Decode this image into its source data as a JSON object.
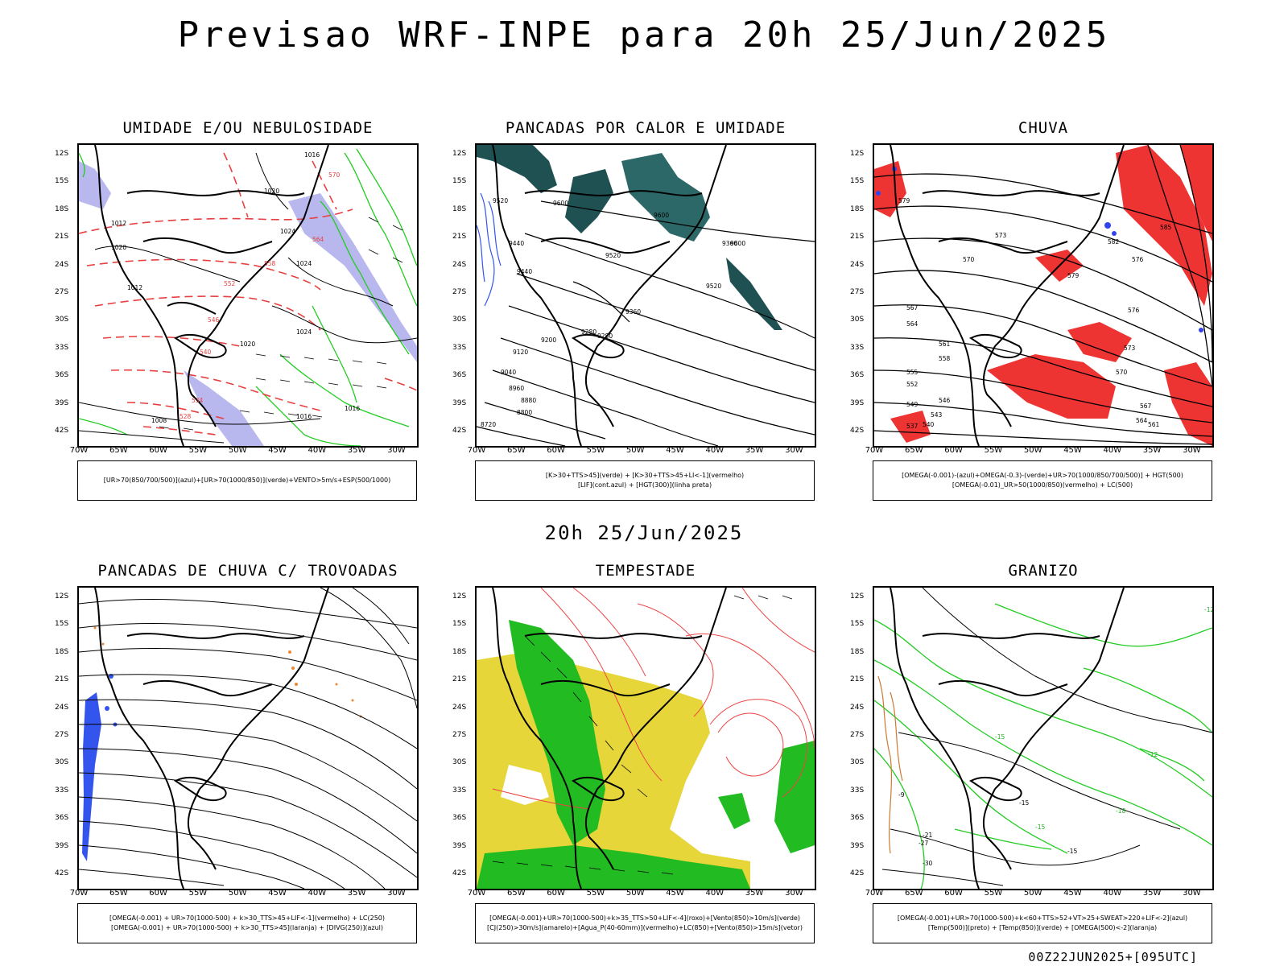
{
  "header": {
    "title": "Previsao WRF-INPE  para 20h 25/Jun/2025"
  },
  "mid_time": "20h 25/Jun/2025",
  "footer_code": "00Z22JUN2025+[095UTC]",
  "axes": {
    "lat_ticks": [
      "12S",
      "15S",
      "18S",
      "21S",
      "24S",
      "27S",
      "30S",
      "33S",
      "36S",
      "39S",
      "42S"
    ],
    "lon_ticks": [
      "70W",
      "65W",
      "60W",
      "55W",
      "50W",
      "45W",
      "40W",
      "35W",
      "30W"
    ]
  },
  "panels": [
    {
      "id": "umidade",
      "title": "UMIDADE E/OU NEBULOSIDADE",
      "legend": [
        "[UR>70(850/700/500)](azul)+[UR>70(1000/850)](verde)+VENTO>5m/s+ESP(500/1000)"
      ],
      "contour_labels": [
        "1016",
        "1020",
        "1012",
        "1020",
        "1024",
        "1024",
        "1020",
        "1012",
        "1008",
        "1016",
        "1016",
        "1024",
        "570",
        "564",
        "558",
        "552",
        "546",
        "540",
        "534",
        "528"
      ]
    },
    {
      "id": "pancadas_calor",
      "title": "PANCADAS POR CALOR E UMIDADE",
      "legend": [
        "[K>30+TTS>45](verde) + [K>30+TTS>45+LI<-1](vermelho)",
        "[LIF](cont.azul) + [HGT(300)](linha preta)"
      ],
      "contour_labels": [
        "9520",
        "9600",
        "9440",
        "9520",
        "9600",
        "9360",
        "9440",
        "9280",
        "9200",
        "9120",
        "9040",
        "8960",
        "8880",
        "8800",
        "8720",
        "9600",
        "9520",
        "9360",
        "9280"
      ]
    },
    {
      "id": "chuva",
      "title": "CHUVA",
      "legend": [
        "[OMEGA(-0.001)-(azul)+OMEGA(-0.3)-(verde)+UR>70(1000/850/700/500)] + HGT(500)",
        "[OMEGA(-0.01)_UR>50(1000/850)(vermelho) + LC(500)"
      ],
      "contour_labels": [
        "579",
        "576",
        "573",
        "570",
        "567",
        "564",
        "561",
        "558",
        "555",
        "552",
        "549",
        "546",
        "543",
        "540",
        "537",
        "585",
        "582",
        "579",
        "576",
        "573",
        "570",
        "567",
        "564",
        "561"
      ]
    },
    {
      "id": "pancadas_trovoadas",
      "title": "PANCADAS DE CHUVA C/ TROVOADAS",
      "legend": [
        "[OMEGA(-0.001) + UR>70(1000-500) + k>30_TTS>45+LIF<-1](vermelho) + LC(250)",
        "[OMEGA(-0.001) + UR>70(1000-500) + k>30_TTS>45](laranja) + [DIVG(250)](azul)"
      ],
      "contour_labels": []
    },
    {
      "id": "tempestade",
      "title": "TEMPESTADE",
      "legend": [
        "[OMEGA(-0.001)+UR>70(1000-500)+k>35_TTS>50+LIF<-4](roxo)+[Vento(850)>10m/s](verde)",
        "[CJ(250)>30m/s](amarelo)+[Agua_P(40-60mm)](vermelho)+LC(850)+[Vento(850)>15m/s](vetor)"
      ],
      "contour_labels": []
    },
    {
      "id": "granizo",
      "title": "GRANIZO",
      "legend": [
        "[OMEGA(-0.001)+UR>70(1000-500)+k<60+TTS>52+VT>25+SWEAT>220+LIF<-2](azul)",
        "[Temp(500)](preto) + [Temp(850)](verde) + [OMEGA(500)<-2](laranja)"
      ],
      "contour_labels": [
        "-12",
        "-15",
        "-12",
        "-15",
        "-18",
        "-15",
        "-21",
        "-27",
        "-30",
        "-15",
        "-9"
      ]
    }
  ]
}
